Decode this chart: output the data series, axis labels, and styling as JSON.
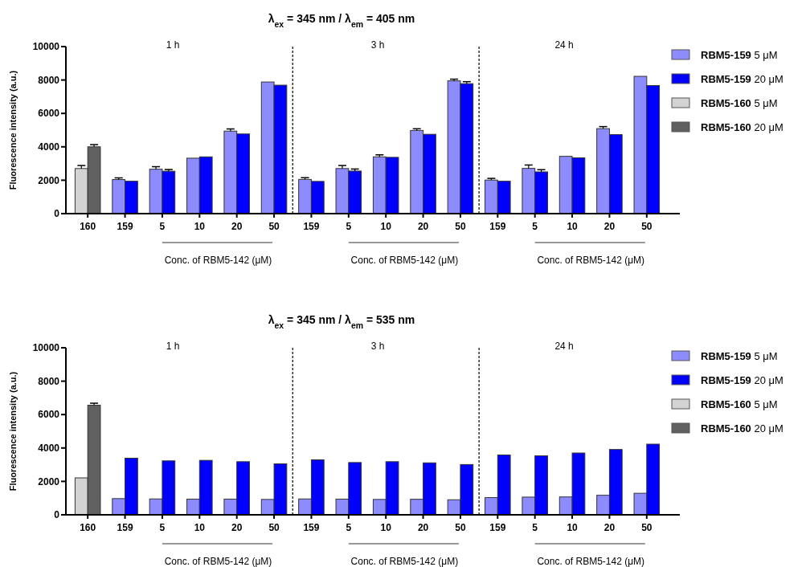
{
  "chart_data": [
    {
      "type": "bar",
      "title": "λ$_{ex}$ = 345 nm / λ$_{em}$ = 405 nm",
      "ylabel": "Fluorescence intensity (a.u.)",
      "categories": [
        "160",
        "159",
        "5",
        "10",
        "20",
        "50",
        "159",
        "5",
        "10",
        "20",
        "50",
        "159",
        "5",
        "10",
        "20",
        "50"
      ],
      "series": [
        {
          "name": "RBM5-159 5 μM",
          "color": "#8c8cff",
          "values": [
            null,
            2040,
            2660,
            3320,
            4940,
            7880,
            2050,
            2700,
            3400,
            4980,
            7950,
            2010,
            2710,
            3430,
            5090,
            8220
          ],
          "errors": [
            null,
            100,
            150,
            null,
            130,
            null,
            100,
            180,
            120,
            100,
            100,
            100,
            200,
            null,
            120,
            null
          ]
        },
        {
          "name": "RBM5-159 20 μM",
          "color": "#0000ff",
          "values": [
            null,
            1940,
            2540,
            3400,
            4770,
            7690,
            1930,
            2550,
            3370,
            4750,
            7780,
            1940,
            2500,
            3340,
            4730,
            7670
          ],
          "errors": [
            null,
            null,
            100,
            null,
            null,
            null,
            null,
            120,
            null,
            null,
            120,
            null,
            130,
            null,
            null,
            null
          ]
        },
        {
          "name": "RBM5-160 5 μM",
          "color": "#d3d3d3",
          "values": [
            2700,
            null,
            null,
            null,
            null,
            null,
            null,
            null,
            null,
            null,
            null,
            null,
            null,
            null,
            null,
            null
          ],
          "errors": [
            180,
            null,
            null,
            null,
            null,
            null,
            null,
            null,
            null,
            null,
            null,
            null,
            null,
            null,
            null,
            null
          ]
        },
        {
          "name": "RBM5-160 20 μM",
          "color": "#606060",
          "values": [
            4000,
            null,
            null,
            null,
            null,
            null,
            null,
            null,
            null,
            null,
            null,
            null,
            null,
            null,
            null,
            null
          ],
          "errors": [
            130,
            null,
            null,
            null,
            null,
            null,
            null,
            null,
            null,
            null,
            null,
            null,
            null,
            null,
            null,
            null
          ]
        }
      ],
      "ylim": [
        0,
        10000
      ],
      "yticks": [
        0,
        2000,
        4000,
        6000,
        8000,
        10000
      ],
      "grid": false,
      "legend": "right",
      "annotations": [
        "1 h",
        "3 h",
        "24 h",
        "Conc. of RBM5-142 (μM)",
        "Conc. of RBM5-142 (μM)",
        "Conc. of RBM5-142 (μM)"
      ]
    },
    {
      "type": "bar",
      "title": "λ$_{ex}$ = 345 nm / λ$_{em}$ = 535 nm",
      "ylabel": "Fluorescence intensity (a.u.)",
      "categories": [
        "160",
        "159",
        "5",
        "10",
        "20",
        "50",
        "159",
        "5",
        "10",
        "20",
        "50",
        "159",
        "5",
        "10",
        "20",
        "50"
      ],
      "series": [
        {
          "name": "RBM5-159 5 μM",
          "color": "#8c8cff",
          "values": [
            null,
            970,
            950,
            940,
            940,
            920,
            950,
            940,
            920,
            930,
            900,
            1030,
            1060,
            1070,
            1170,
            1290
          ]
        },
        {
          "name": "RBM5-159 20 μM",
          "color": "#0000ff",
          "values": [
            null,
            3390,
            3230,
            3260,
            3180,
            3050,
            3290,
            3130,
            3180,
            3110,
            3010,
            3580,
            3530,
            3700,
            3910,
            4230
          ]
        },
        {
          "name": "RBM5-160 5 μM",
          "color": "#d3d3d3",
          "values": [
            2210,
            null,
            null,
            null,
            null,
            null,
            null,
            null,
            null,
            null,
            null,
            null,
            null,
            null,
            null,
            null
          ]
        },
        {
          "name": "RBM5-160 20 μM",
          "color": "#606060",
          "values": [
            6560,
            null,
            null,
            null,
            null,
            null,
            null,
            null,
            null,
            null,
            null,
            null,
            null,
            null,
            null,
            null
          ],
          "errors": [
            120,
            null,
            null,
            null,
            null,
            null,
            null,
            null,
            null,
            null,
            null,
            null,
            null,
            null,
            null,
            null
          ]
        }
      ],
      "ylim": [
        0,
        10000
      ],
      "yticks": [
        0,
        2000,
        4000,
        6000,
        8000,
        10000
      ],
      "grid": false,
      "legend": "right",
      "annotations": [
        "1 h",
        "3 h",
        "24 h",
        "Conc. of RBM5-142 (μM)",
        "Conc. of RBM5-142 (μM)",
        "Conc. of RBM5-142 (μM)"
      ]
    }
  ]
}
